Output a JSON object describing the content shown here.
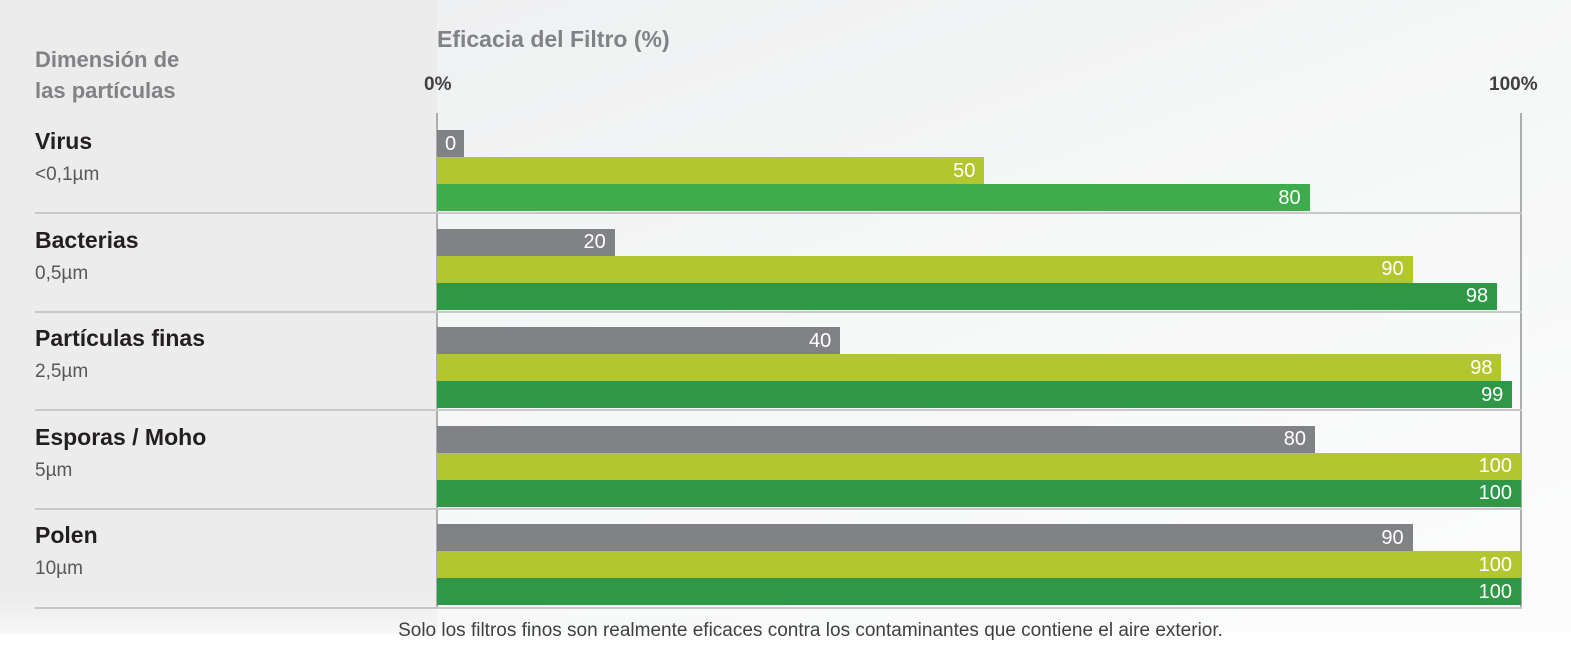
{
  "header": {
    "left_title": "Dimensión de\nlas partículas",
    "chart_title": "Eficacia del Filtro (%)",
    "axis_min_label": "0%",
    "axis_max_label": "100%"
  },
  "footer": {
    "note": "Solo los filtros finos son realmente eficaces contra los contaminantes que contiene el aire exterior."
  },
  "colors": {
    "gray_bar": "#808285",
    "light_green_bar": "#b2c72f",
    "green_bar": "#2f9847",
    "green_bar_virus_row": "#3eab4d",
    "value_text": "#ffffff",
    "left_panel_bg": "#ebeceb",
    "separator": "#c7c8ca",
    "axis_line": "#abadaf",
    "heading_gray": "#808285",
    "category_text": "#231f20",
    "size_text": "#57585a"
  },
  "chart_data": {
    "type": "bar",
    "orientation": "horizontal",
    "title": "Eficacia del Filtro (%)",
    "xlabel": "Eficacia del Filtro (%)",
    "ylabel": "Dimensión de las partículas",
    "x_axis": {
      "min": 0,
      "max": 100,
      "unit": "%",
      "tick_labels": [
        "0%",
        "100%"
      ],
      "grid": false
    },
    "legend": "none",
    "categories": [
      {
        "label": "Virus",
        "size": "<0,1µm"
      },
      {
        "label": "Bacterias",
        "size": "0,5µm"
      },
      {
        "label": "Partículas finas",
        "size": "2,5µm"
      },
      {
        "label": "Esporas / Moho",
        "size": "5µm"
      },
      {
        "label": "Polen",
        "size": "10µm"
      }
    ],
    "series": [
      {
        "name": "barra-gris",
        "color": "#808285",
        "values": [
          0,
          20,
          40,
          80,
          90
        ]
      },
      {
        "name": "barra-verde-clara",
        "color": "#b2c72f",
        "values": [
          50,
          90,
          98,
          100,
          100
        ]
      },
      {
        "name": "barra-verde",
        "color": "#2f9847",
        "values": [
          80,
          98,
          99,
          100,
          100
        ]
      }
    ],
    "display_width_pct": [
      [
        2.5,
        50.5,
        80.5
      ],
      [
        16.4,
        90.0,
        97.8
      ],
      [
        37.2,
        98.2,
        99.2
      ],
      [
        81.0,
        100,
        100
      ],
      [
        90.0,
        100,
        100
      ]
    ],
    "note": "Solo los filtros finos son realmente eficaces contra los contaminantes que contiene el aire exterior."
  }
}
